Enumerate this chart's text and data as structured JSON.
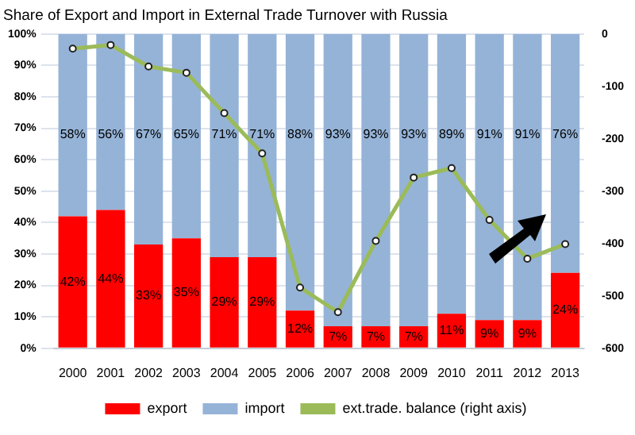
{
  "chart_data": {
    "type": "bar",
    "title": "Share of Export and Import in External Trade Turnover with Russia",
    "categories": [
      "2000",
      "2001",
      "2002",
      "2003",
      "2004",
      "2005",
      "2006",
      "2007",
      "2008",
      "2009",
      "2010",
      "2011",
      "2012",
      "2013"
    ],
    "stacked": true,
    "series": [
      {
        "name": "export",
        "color": "#ff0000",
        "values": [
          42,
          44,
          33,
          35,
          29,
          29,
          12,
          7,
          7,
          7,
          11,
          9,
          9,
          24
        ],
        "value_labels": [
          "42%",
          "44%",
          "33%",
          "35%",
          "29%",
          "29%",
          "12%",
          "7%",
          "7%",
          "7%",
          "11%",
          "9%",
          "9%",
          "24%"
        ]
      },
      {
        "name": "import",
        "color": "#95b3d7",
        "values": [
          58,
          56,
          67,
          65,
          71,
          71,
          88,
          93,
          93,
          93,
          89,
          91,
          91,
          76
        ],
        "value_labels": [
          "58%",
          "56%",
          "67%",
          "65%",
          "71%",
          "71%",
          "88%",
          "93%",
          "93%",
          "93%",
          "89%",
          "91%",
          "91%",
          "76%"
        ]
      },
      {
        "name": "ext.trade. balance (right axis)",
        "type": "line",
        "axis": "y2",
        "color": "#9bbb59",
        "values": [
          -28,
          -21,
          -62,
          -74,
          -151,
          -228,
          -484,
          -531,
          -395,
          -274,
          -256,
          -355,
          -429,
          -401
        ]
      }
    ],
    "ylim": [
      0,
      100
    ],
    "yticks": [
      {
        "value": 0,
        "label": "0%"
      },
      {
        "value": 10,
        "label": "10%"
      },
      {
        "value": 20,
        "label": "20%"
      },
      {
        "value": 30,
        "label": "30%"
      },
      {
        "value": 40,
        "label": "40%"
      },
      {
        "value": 50,
        "label": "50%"
      },
      {
        "value": 60,
        "label": "60%"
      },
      {
        "value": 70,
        "label": "70%"
      },
      {
        "value": 80,
        "label": "80%"
      },
      {
        "value": 90,
        "label": "90%"
      },
      {
        "value": 100,
        "label": "100%"
      }
    ],
    "y2lim": [
      -600,
      0
    ],
    "y2ticks": [
      -600,
      -500,
      -400,
      -300,
      -200,
      -100,
      0
    ],
    "grid": "y",
    "legend": "bottom",
    "marker": "circle"
  }
}
